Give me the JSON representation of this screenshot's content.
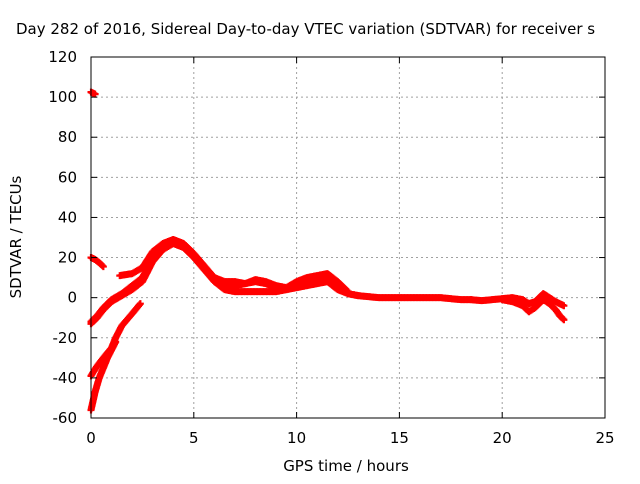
{
  "chart_data": {
    "type": "scatter",
    "title": "Day 282 of 2016, Sidereal Day-to-day VTEC variation (SDTVAR) for receiver s",
    "xlabel": "GPS time / hours",
    "ylabel": "SDTVAR / TECUs",
    "xlim": [
      0,
      25
    ],
    "ylim": [
      -60,
      120
    ],
    "xticks": [
      0,
      5,
      10,
      15,
      20,
      25
    ],
    "yticks": [
      -60,
      -40,
      -20,
      0,
      20,
      40,
      60,
      80,
      100,
      120
    ],
    "grid": true,
    "legend": "none",
    "marker": "plus",
    "series_color": "#ff0000",
    "series": [
      {
        "x": [
          0.0,
          0.1,
          0.2
        ],
        "y": [
          102.5,
          102.0,
          101.5
        ]
      },
      {
        "x": [
          0.0,
          0.2,
          0.4,
          0.6
        ],
        "y": [
          20.0,
          19.0,
          17.5,
          15.5
        ]
      },
      {
        "x": [
          0.0,
          0.3,
          0.6,
          1.0,
          1.5,
          2.0,
          2.5,
          3.0,
          3.5,
          4.0,
          4.5,
          5.0,
          5.5,
          6.0,
          6.5,
          7.0,
          7.5,
          8.0,
          8.5,
          9.0,
          9.5,
          10.0,
          10.5,
          11.0,
          11.5,
          12.0,
          12.5,
          13.0,
          13.5,
          14.0,
          14.5,
          15.0,
          15.5,
          16.0,
          16.5,
          17.0,
          17.5,
          18.0,
          18.5
        ],
        "y": [
          -13.0,
          -10.0,
          -6.0,
          -2.0,
          1.0,
          4.0,
          8.0,
          18.0,
          24.0,
          27.0,
          25.0,
          20.0,
          14.0,
          8.0,
          4.0,
          3.0,
          3.0,
          3.0,
          3.0,
          3.0,
          4.0,
          5.0,
          6.0,
          7.0,
          8.0,
          4.0,
          2.0,
          1.0,
          0.5,
          0.0,
          0.0,
          0.0,
          0.0,
          0.0,
          0.0,
          0.0,
          -0.5,
          -1.0,
          -1.0
        ]
      },
      {
        "x": [
          0.0,
          0.3,
          0.6,
          1.0,
          1.5,
          2.0,
          2.5,
          3.0,
          3.5,
          4.0,
          4.5,
          5.0,
          5.5,
          6.0,
          6.5,
          7.0,
          7.5,
          8.0,
          8.5,
          9.0,
          9.5,
          10.0,
          10.5,
          11.0,
          11.5,
          12.0,
          12.5,
          13.0
        ],
        "y": [
          -12.0,
          -9.0,
          -5.0,
          -1.0,
          2.0,
          6.0,
          10.0,
          20.0,
          25.0,
          28.0,
          26.0,
          21.0,
          15.0,
          10.0,
          7.0,
          6.0,
          7.0,
          8.0,
          7.0,
          5.0,
          4.0,
          7.0,
          9.0,
          10.0,
          11.0,
          6.0,
          2.0,
          1.0
        ]
      },
      {
        "x": [
          1.4,
          2.0,
          2.5,
          3.0,
          3.5,
          4.0,
          4.5,
          5.0,
          5.5,
          6.0,
          6.5,
          7.0,
          7.5,
          8.0,
          8.5,
          9.0,
          9.5,
          10.0,
          10.5,
          11.0,
          11.5,
          12.0,
          12.5
        ],
        "y": [
          11.0,
          12.0,
          15.0,
          23.0,
          27.0,
          29.0,
          27.0,
          22.0,
          16.0,
          10.0,
          8.0,
          8.0,
          7.0,
          9.0,
          8.0,
          6.0,
          5.0,
          8.0,
          10.0,
          11.0,
          12.0,
          8.0,
          3.0
        ]
      },
      {
        "x": [
          0.0,
          0.2,
          0.4,
          0.6,
          0.8,
          1.0,
          1.2
        ],
        "y": [
          -56.0,
          -47.0,
          -40.0,
          -35.0,
          -30.0,
          -26.0,
          -22.0
        ]
      },
      {
        "x": [
          0.0,
          0.3,
          0.6,
          1.0,
          1.2,
          1.5,
          2.0,
          2.4
        ],
        "y": [
          -39.0,
          -34.0,
          -30.0,
          -25.0,
          -20.0,
          -14.0,
          -8.0,
          -3.0
        ]
      },
      {
        "x": [
          18.5,
          19.0,
          19.5,
          20.0,
          20.5,
          21.0,
          21.3,
          21.6,
          22.0,
          22.3,
          22.6,
          23.0
        ],
        "y": [
          -1.0,
          -1.5,
          -1.0,
          -0.5,
          0.0,
          -1.0,
          -3.0,
          -2.0,
          2.0,
          0.0,
          -2.0,
          -4.0
        ]
      },
      {
        "x": [
          20.0,
          20.5,
          21.0,
          21.3,
          21.6,
          22.0,
          22.3,
          22.6,
          22.8,
          23.0
        ],
        "y": [
          -1.0,
          -2.0,
          -4.0,
          -7.0,
          -5.0,
          -1.0,
          -3.0,
          -6.0,
          -9.0,
          -11.0
        ]
      }
    ]
  }
}
